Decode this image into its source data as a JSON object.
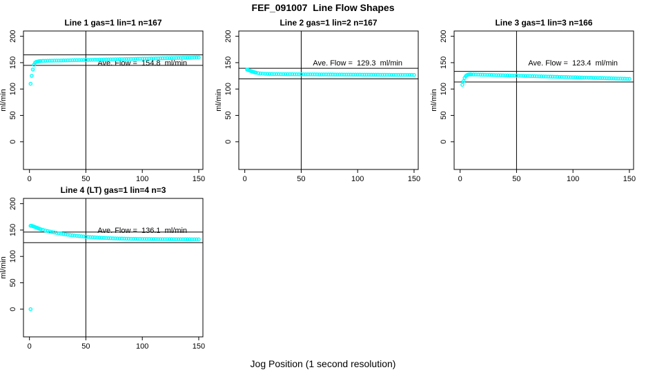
{
  "figure": {
    "title": "FEF_091007  Line Flow Shapes",
    "xlabel": "Jog Position (1 second resolution)",
    "point_color": "#00ffff",
    "axis_color": "#000000",
    "background": "#ffffff"
  },
  "chart_data": [
    {
      "type": "scatter",
      "title": "Line 1 gas=1 lin=1 n=167",
      "ylabel": "ml/min",
      "annotation": "Ave. Flow =  154.8  ml/min",
      "ave_flow": 154.8,
      "annotation_at": [
        100,
        150
      ],
      "hlines": [
        164.8,
        144.8
      ],
      "vline": 50,
      "x_ticks": [
        0,
        50,
        100,
        150
      ],
      "y_ticks": [
        0,
        50,
        100,
        150,
        200
      ],
      "xlim": [
        -5.3,
        153.7
      ],
      "ylim": [
        -52.5,
        210
      ],
      "grid": false,
      "points": [
        [
          1,
          110
        ],
        [
          2,
          125
        ],
        [
          3,
          137
        ],
        [
          4,
          146
        ],
        [
          5,
          150
        ],
        [
          6,
          151.5
        ],
        [
          7,
          152
        ],
        [
          8,
          152.5
        ],
        [
          9,
          153
        ],
        [
          10,
          153.2
        ],
        [
          12,
          153.4
        ],
        [
          14,
          153.5
        ],
        [
          16,
          153.6
        ],
        [
          18,
          153.7
        ],
        [
          20,
          153.8
        ],
        [
          22,
          153.9
        ],
        [
          24,
          154
        ],
        [
          26,
          154
        ],
        [
          28,
          154.1
        ],
        [
          30,
          154.2
        ],
        [
          32,
          154.3
        ],
        [
          34,
          154.4
        ],
        [
          36,
          154.5
        ],
        [
          38,
          154.6
        ],
        [
          40,
          154.7
        ],
        [
          42,
          154.8
        ],
        [
          44,
          154.9
        ],
        [
          46,
          155
        ],
        [
          48,
          155.1
        ],
        [
          50,
          155.1
        ],
        [
          52,
          155.2
        ],
        [
          54,
          155.3
        ],
        [
          56,
          155.4
        ],
        [
          58,
          155.5
        ],
        [
          60,
          155.6
        ],
        [
          62,
          155.7
        ],
        [
          64,
          155.8
        ],
        [
          66,
          155.9
        ],
        [
          68,
          156
        ],
        [
          70,
          156.1
        ],
        [
          72,
          156.2
        ],
        [
          74,
          156.3
        ],
        [
          76,
          156.4
        ],
        [
          78,
          156.4
        ],
        [
          80,
          156.5
        ],
        [
          82,
          156.6
        ],
        [
          84,
          156.7
        ],
        [
          86,
          156.8
        ],
        [
          88,
          156.9
        ],
        [
          90,
          157
        ],
        [
          92,
          157.1
        ],
        [
          94,
          157.2
        ],
        [
          96,
          157.3
        ],
        [
          98,
          157.4
        ],
        [
          100,
          157.5
        ],
        [
          102,
          157.5
        ],
        [
          104,
          157.6
        ],
        [
          106,
          157.7
        ],
        [
          108,
          157.8
        ],
        [
          110,
          157.9
        ],
        [
          112,
          158
        ],
        [
          114,
          158.1
        ],
        [
          116,
          158.2
        ],
        [
          118,
          158.3
        ],
        [
          120,
          158.4
        ],
        [
          122,
          158.5
        ],
        [
          124,
          158.5
        ],
        [
          126,
          158.6
        ],
        [
          128,
          158.7
        ],
        [
          130,
          158.8
        ],
        [
          132,
          158.9
        ],
        [
          134,
          159
        ],
        [
          136,
          159.1
        ],
        [
          138,
          159.2
        ],
        [
          140,
          159.3
        ],
        [
          142,
          159.4
        ],
        [
          144,
          159.4
        ],
        [
          146,
          159.5
        ],
        [
          148,
          159.6
        ],
        [
          150,
          159.7
        ]
      ]
    },
    {
      "type": "scatter",
      "title": "Line 2 gas=1 lin=2 n=167",
      "ylabel": "ml/min",
      "annotation": "Ave. Flow =  129.3  ml/min",
      "ave_flow": 129.3,
      "annotation_at": [
        100,
        150
      ],
      "hlines": [
        139.3,
        119.3
      ],
      "vline": 50,
      "x_ticks": [
        0,
        50,
        100,
        150
      ],
      "y_ticks": [
        0,
        50,
        100,
        150,
        200
      ],
      "xlim": [
        -5.3,
        153.7
      ],
      "ylim": [
        -52.5,
        210
      ],
      "grid": false,
      "points": [
        [
          2,
          137
        ],
        [
          3,
          136.2
        ],
        [
          4,
          135.3
        ],
        [
          5,
          134.4
        ],
        [
          6,
          133.6
        ],
        [
          7,
          132.9
        ],
        [
          8,
          132.2
        ],
        [
          9,
          131.6
        ],
        [
          10,
          131
        ],
        [
          12,
          130.1
        ],
        [
          14,
          129.5
        ],
        [
          16,
          129.1
        ],
        [
          18,
          128.8
        ],
        [
          20,
          128.6
        ],
        [
          22,
          128.5
        ],
        [
          24,
          128.4
        ],
        [
          26,
          128.3
        ],
        [
          28,
          128.3
        ],
        [
          30,
          128.3
        ],
        [
          32,
          128.2
        ],
        [
          34,
          128.2
        ],
        [
          36,
          128.2
        ],
        [
          38,
          128.1
        ],
        [
          40,
          128.1
        ],
        [
          42,
          128.1
        ],
        [
          44,
          128
        ],
        [
          46,
          128
        ],
        [
          48,
          128
        ],
        [
          50,
          128
        ],
        [
          52,
          127.9
        ],
        [
          54,
          127.9
        ],
        [
          56,
          127.9
        ],
        [
          58,
          127.8
        ],
        [
          60,
          127.8
        ],
        [
          62,
          127.8
        ],
        [
          64,
          127.8
        ],
        [
          66,
          127.7
        ],
        [
          68,
          127.7
        ],
        [
          70,
          127.7
        ],
        [
          72,
          127.7
        ],
        [
          74,
          127.6
        ],
        [
          76,
          127.6
        ],
        [
          78,
          127.6
        ],
        [
          80,
          127.5
        ],
        [
          82,
          127.5
        ],
        [
          84,
          127.5
        ],
        [
          86,
          127.5
        ],
        [
          88,
          127.4
        ],
        [
          90,
          127.4
        ],
        [
          92,
          127.4
        ],
        [
          94,
          127.4
        ],
        [
          96,
          127.3
        ],
        [
          98,
          127.3
        ],
        [
          100,
          127.3
        ],
        [
          102,
          127.3
        ],
        [
          104,
          127.2
        ],
        [
          106,
          127.2
        ],
        [
          108,
          127.2
        ],
        [
          110,
          127.2
        ],
        [
          112,
          127.1
        ],
        [
          114,
          127.1
        ],
        [
          116,
          127.1
        ],
        [
          118,
          127.1
        ],
        [
          120,
          127
        ],
        [
          122,
          127
        ],
        [
          124,
          127
        ],
        [
          126,
          127
        ],
        [
          128,
          127
        ],
        [
          130,
          126.9
        ],
        [
          132,
          126.9
        ],
        [
          134,
          126.9
        ],
        [
          136,
          126.9
        ],
        [
          138,
          126.9
        ],
        [
          140,
          126.8
        ],
        [
          142,
          126.8
        ],
        [
          144,
          126.8
        ],
        [
          146,
          126.8
        ],
        [
          148,
          126.8
        ],
        [
          150,
          126.7
        ]
      ]
    },
    {
      "type": "scatter",
      "title": "Line 3 gas=1 lin=3 n=166",
      "ylabel": "ml/min",
      "annotation": "Ave. Flow =  123.4  ml/min",
      "ave_flow": 123.4,
      "annotation_at": [
        100,
        150
      ],
      "hlines": [
        133.4,
        113.4
      ],
      "vline": 50,
      "x_ticks": [
        0,
        50,
        100,
        150
      ],
      "y_ticks": [
        0,
        50,
        100,
        150,
        200
      ],
      "xlim": [
        -5.3,
        153.7
      ],
      "ylim": [
        -52.5,
        210
      ],
      "grid": false,
      "points": [
        [
          2,
          108
        ],
        [
          3,
          115
        ],
        [
          4,
          121
        ],
        [
          5,
          124.5
        ],
        [
          6,
          126.3
        ],
        [
          7,
          127.2
        ],
        [
          8,
          127.6
        ],
        [
          9,
          127.8
        ],
        [
          10,
          127.7
        ],
        [
          12,
          127.6
        ],
        [
          14,
          127.5
        ],
        [
          16,
          127.4
        ],
        [
          18,
          127.2
        ],
        [
          20,
          127.1
        ],
        [
          22,
          127
        ],
        [
          24,
          126.9
        ],
        [
          26,
          126.8
        ],
        [
          28,
          126.6
        ],
        [
          30,
          126.5
        ],
        [
          32,
          126.4
        ],
        [
          34,
          126.3
        ],
        [
          36,
          126.2
        ],
        [
          38,
          126
        ],
        [
          40,
          125.9
        ],
        [
          42,
          125.8
        ],
        [
          44,
          125.7
        ],
        [
          46,
          125.6
        ],
        [
          48,
          125.4
        ],
        [
          50,
          125.3
        ],
        [
          52,
          125.2
        ],
        [
          54,
          125.1
        ],
        [
          56,
          125
        ],
        [
          58,
          124.8
        ],
        [
          60,
          124.7
        ],
        [
          62,
          124.6
        ],
        [
          64,
          124.5
        ],
        [
          66,
          124.4
        ],
        [
          68,
          124.2
        ],
        [
          70,
          124.1
        ],
        [
          72,
          124
        ],
        [
          74,
          123.9
        ],
        [
          76,
          123.8
        ],
        [
          78,
          123.6
        ],
        [
          80,
          123.5
        ],
        [
          82,
          123.4
        ],
        [
          84,
          123.3
        ],
        [
          86,
          123.2
        ],
        [
          88,
          123
        ],
        [
          90,
          122.9
        ],
        [
          92,
          122.8
        ],
        [
          94,
          122.7
        ],
        [
          96,
          122.6
        ],
        [
          98,
          122.4
        ],
        [
          100,
          122.3
        ],
        [
          102,
          122.2
        ],
        [
          104,
          122.1
        ],
        [
          106,
          122
        ],
        [
          108,
          121.8
        ],
        [
          110,
          121.7
        ],
        [
          112,
          121.6
        ],
        [
          114,
          121.5
        ],
        [
          116,
          121.4
        ],
        [
          118,
          121.2
        ],
        [
          120,
          121.1
        ],
        [
          122,
          121
        ],
        [
          124,
          120.9
        ],
        [
          126,
          120.8
        ],
        [
          128,
          120.6
        ],
        [
          130,
          120.5
        ],
        [
          132,
          120.4
        ],
        [
          134,
          120.3
        ],
        [
          136,
          120.2
        ],
        [
          138,
          120
        ],
        [
          140,
          119.9
        ],
        [
          142,
          119.8
        ],
        [
          144,
          119.7
        ],
        [
          146,
          119.6
        ],
        [
          148,
          119.4
        ],
        [
          150,
          119.3
        ]
      ]
    },
    {
      "type": "scatter",
      "title": "Line 4 (LT) gas=1 lin=4 n=3",
      "ylabel": "ml/min",
      "annotation": "Ave. Flow =  136.1  ml/min",
      "ave_flow": 136.1,
      "annotation_at": [
        100,
        150
      ],
      "hlines": [
        146.1,
        126.1
      ],
      "vline": 50,
      "x_ticks": [
        0,
        50,
        100,
        150
      ],
      "y_ticks": [
        0,
        50,
        100,
        150,
        200
      ],
      "xlim": [
        -5.3,
        153.7
      ],
      "ylim": [
        -52.5,
        210
      ],
      "grid": false,
      "points": [
        [
          1,
          0
        ],
        [
          1,
          158
        ],
        [
          2,
          158
        ],
        [
          3,
          157.3
        ],
        [
          4,
          156.5
        ],
        [
          5,
          155.7
        ],
        [
          6,
          154.8
        ],
        [
          7,
          154
        ],
        [
          8,
          153.1
        ],
        [
          9,
          152.3
        ],
        [
          10,
          151.5
        ],
        [
          12,
          150.3
        ],
        [
          14,
          149.2
        ],
        [
          16,
          148.2
        ],
        [
          18,
          147.2
        ],
        [
          20,
          146.3
        ],
        [
          22,
          145.4
        ],
        [
          24,
          144.6
        ],
        [
          26,
          143.8
        ],
        [
          28,
          143.1
        ],
        [
          30,
          142.4
        ],
        [
          32,
          141.8
        ],
        [
          34,
          141.1
        ],
        [
          36,
          140.6
        ],
        [
          38,
          140
        ],
        [
          40,
          139.5
        ],
        [
          42,
          139
        ],
        [
          44,
          138.6
        ],
        [
          46,
          138.2
        ],
        [
          48,
          137.8
        ],
        [
          50,
          137.4
        ],
        [
          52,
          137
        ],
        [
          54,
          136.7
        ],
        [
          56,
          136.4
        ],
        [
          58,
          136.1
        ],
        [
          60,
          135.8
        ],
        [
          62,
          135.6
        ],
        [
          64,
          135.3
        ],
        [
          66,
          135.1
        ],
        [
          68,
          134.9
        ],
        [
          70,
          134.7
        ],
        [
          72,
          134.5
        ],
        [
          74,
          134.3
        ],
        [
          76,
          134.2
        ],
        [
          78,
          134
        ],
        [
          80,
          133.9
        ],
        [
          82,
          133.8
        ],
        [
          84,
          133.7
        ],
        [
          86,
          133.6
        ],
        [
          88,
          133.5
        ],
        [
          90,
          133.4
        ],
        [
          92,
          133.3
        ],
        [
          94,
          133.3
        ],
        [
          96,
          133.2
        ],
        [
          98,
          133.2
        ],
        [
          100,
          133.1
        ],
        [
          102,
          133.1
        ],
        [
          104,
          133
        ],
        [
          106,
          133
        ],
        [
          108,
          132.9
        ],
        [
          110,
          132.9
        ],
        [
          112,
          132.9
        ],
        [
          114,
          132.8
        ],
        [
          116,
          132.8
        ],
        [
          118,
          132.8
        ],
        [
          120,
          132.7
        ],
        [
          122,
          132.7
        ],
        [
          124,
          132.7
        ],
        [
          126,
          132.7
        ],
        [
          128,
          132.6
        ],
        [
          130,
          132.6
        ],
        [
          132,
          132.6
        ],
        [
          134,
          132.6
        ],
        [
          136,
          132.5
        ],
        [
          138,
          132.5
        ],
        [
          140,
          132.5
        ],
        [
          142,
          132.5
        ],
        [
          144,
          132.4
        ],
        [
          146,
          132.4
        ],
        [
          148,
          132.4
        ],
        [
          150,
          132.4
        ]
      ]
    }
  ]
}
